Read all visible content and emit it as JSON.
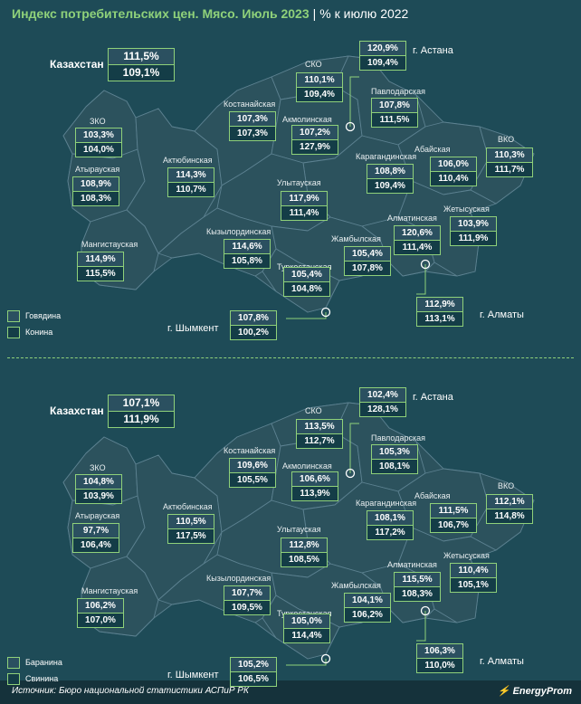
{
  "title": "Индекс потребительских цен. Мясо. Июль 2023",
  "unit": "% к июлю 2022",
  "source": "Источник: Бюро национальной статистики АСПиР РК",
  "logo": "EnergyProm",
  "colors": {
    "background": "#1e4b57",
    "accent": "#8fd17a",
    "region": "#2c525d"
  },
  "maps": [
    {
      "legend": [
        "Говядина",
        "Конина"
      ],
      "kazakhstan": {
        "label": "Казахстан",
        "values": [
          "111,5%",
          "109,1%"
        ]
      },
      "regions": [
        {
          "name": "г. Астана",
          "values": [
            "120,9%",
            "109,4%"
          ]
        },
        {
          "name": "СКО",
          "values": [
            "110,1%",
            "109,4%"
          ]
        },
        {
          "name": "Павлодарская",
          "values": [
            "107,8%",
            "111,5%"
          ]
        },
        {
          "name": "Костанайская",
          "values": [
            "107,3%",
            "107,3%"
          ]
        },
        {
          "name": "Акмолинская",
          "values": [
            "107,2%",
            "127,9%"
          ]
        },
        {
          "name": "ЗКО",
          "values": [
            "103,3%",
            "104,0%"
          ]
        },
        {
          "name": "Актюбинская",
          "values": [
            "114,3%",
            "110,7%"
          ]
        },
        {
          "name": "Атырауская",
          "values": [
            "108,9%",
            "108,3%"
          ]
        },
        {
          "name": "Карагандинская",
          "values": [
            "108,8%",
            "109,4%"
          ]
        },
        {
          "name": "Абайская",
          "values": [
            "106,0%",
            "110,4%"
          ]
        },
        {
          "name": "ВКО",
          "values": [
            "110,3%",
            "111,7%"
          ]
        },
        {
          "name": "Улытауская",
          "values": [
            "117,9%",
            "111,4%"
          ]
        },
        {
          "name": "Жетысуская",
          "values": [
            "103,9%",
            "111,9%"
          ]
        },
        {
          "name": "Алматинская",
          "values": [
            "120,6%",
            "111,4%"
          ]
        },
        {
          "name": "Кызылординская",
          "values": [
            "114,6%",
            "105,8%"
          ]
        },
        {
          "name": "Мангистауская",
          "values": [
            "114,9%",
            "115,5%"
          ]
        },
        {
          "name": "Жамбылская",
          "values": [
            "105,4%",
            "107,8%"
          ]
        },
        {
          "name": "Туркестанская",
          "values": [
            "105,4%",
            "104,8%"
          ]
        },
        {
          "name": "г. Алматы",
          "values": [
            "112,9%",
            "113,1%"
          ]
        },
        {
          "name": "г. Шымкент",
          "values": [
            "107,8%",
            "100,2%"
          ]
        }
      ]
    },
    {
      "legend": [
        "Баранина",
        "Свинина"
      ],
      "kazakhstan": {
        "label": "Казахстан",
        "values": [
          "107,1%",
          "111,9%"
        ]
      },
      "regions": [
        {
          "name": "г. Астана",
          "values": [
            "102,4%",
            "128,1%"
          ]
        },
        {
          "name": "СКО",
          "values": [
            "113,5%",
            "112,7%"
          ]
        },
        {
          "name": "Павлодарская",
          "values": [
            "105,3%",
            "108,1%"
          ]
        },
        {
          "name": "Костанайская",
          "values": [
            "109,6%",
            "105,5%"
          ]
        },
        {
          "name": "Акмолинская",
          "values": [
            "106,6%",
            "113,9%"
          ]
        },
        {
          "name": "ЗКО",
          "values": [
            "104,8%",
            "103,9%"
          ]
        },
        {
          "name": "Актюбинская",
          "values": [
            "110,5%",
            "117,5%"
          ]
        },
        {
          "name": "Атырауская",
          "values": [
            "97,7%",
            "106,4%"
          ]
        },
        {
          "name": "Карагандинская",
          "values": [
            "108,1%",
            "117,2%"
          ]
        },
        {
          "name": "Абайская",
          "values": [
            "111,5%",
            "106,7%"
          ]
        },
        {
          "name": "ВКО",
          "values": [
            "112,1%",
            "114,8%"
          ]
        },
        {
          "name": "Улытауская",
          "values": [
            "112,8%",
            "108,5%"
          ]
        },
        {
          "name": "Жетысуская",
          "values": [
            "110,4%",
            "105,1%"
          ]
        },
        {
          "name": "Алматинская",
          "values": [
            "115,5%",
            "108,3%"
          ]
        },
        {
          "name": "Кызылординская",
          "values": [
            "107,7%",
            "109,5%"
          ]
        },
        {
          "name": "Мангистауская",
          "values": [
            "106,2%",
            "107,0%"
          ]
        },
        {
          "name": "Жамбылская",
          "values": [
            "104,1%",
            "106,2%"
          ]
        },
        {
          "name": "Туркестанская",
          "values": [
            "105,0%",
            "114,4%"
          ]
        },
        {
          "name": "г. Алматы",
          "values": [
            "106,3%",
            "110,0%"
          ]
        },
        {
          "name": "г. Шымкент",
          "values": [
            "105,2%",
            "106,5%"
          ]
        }
      ]
    }
  ]
}
